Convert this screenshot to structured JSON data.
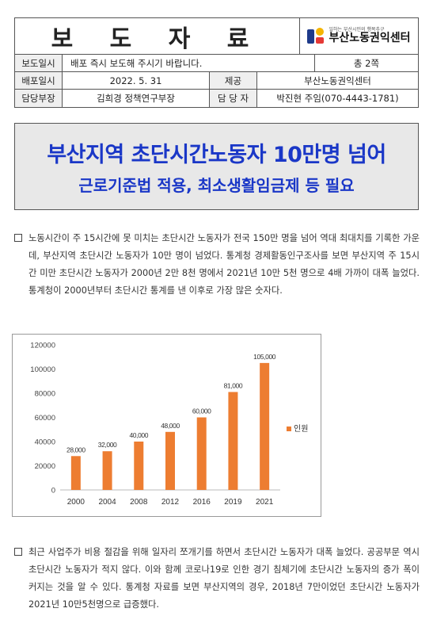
{
  "header": {
    "title": "보 도 자 료",
    "logo_tagline": "일하는 부산시민의 행복추구",
    "logo_name": "부산노동권익센터",
    "rows": [
      [
        {
          "label": "보도일시"
        },
        {
          "value": "배포 즉시 보도해 주시기 바랍니다."
        },
        {
          "value": "총 2쪽"
        }
      ],
      [
        {
          "label": "배포일시"
        },
        {
          "value": "2022. 5. 31"
        },
        {
          "label": "제공"
        },
        {
          "value": "부산노동권익센터"
        }
      ],
      [
        {
          "label": "담당부장"
        },
        {
          "value": "김희경 정책연구부장"
        },
        {
          "label": "담 당 자"
        },
        {
          "value": "박진현 주임(070-4443-1781)"
        }
      ]
    ]
  },
  "headline": {
    "title": "부산지역 초단시간노동자 10만명 넘어",
    "subtitle": "근로기준법 적용, 최소생활임금제 등 필요"
  },
  "paragraphs": [
    "노동시간이 주 15시간에 못 미치는 초단시간 노동자가 전국 150만 명을 넘어 역대 최대치를 기록한 가운데, 부산지역 초단시간 노동자가 10만 명이 넘었다. 통계청 경제활동인구조사를 보면 부산지역 주 15시간 미만 초단시간 노동자가 2000년 2만 8천 명에서 2021년 10만 5천 명으로 4배 가까이 대폭 늘었다. 통계청이 2000년부터 초단시간 통계를 낸 이후로 가장 많은 숫자다.",
    "최근 사업주가 비용 절감을 위해 일자리 쪼개기를 하면서 초단시간 노동자가 대폭 늘었다. 공공부문 역시 초단시간 노동자가 적지 않다. 이와 함께 코로나19로 인한 경기 침체기에 초단시간 노동자의 증가 폭이 커지는 것을 알 수 있다. 통계청 자료를 보면 부산지역의 경우, 2018년 7만이었던 초단시간 노동자가 2021년 10만5천명으로 급증했다."
  ],
  "chart_data": {
    "type": "bar",
    "categories": [
      "2000",
      "2004",
      "2008",
      "2012",
      "2016",
      "2019",
      "2021"
    ],
    "series": [
      {
        "name": "인원",
        "values": [
          28000,
          32000,
          40000,
          48000,
          60000,
          81000,
          105000
        ],
        "color": "#ed7d31"
      }
    ],
    "data_labels": [
      "28,000",
      "32,000",
      "40,000",
      "48,000",
      "60,000",
      "81,000",
      "105,000"
    ],
    "yticks": [
      "0",
      "20000",
      "40000",
      "60000",
      "80000",
      "100000",
      "120000"
    ],
    "ylim": [
      0,
      120000
    ],
    "legend": "right",
    "grid": false
  }
}
